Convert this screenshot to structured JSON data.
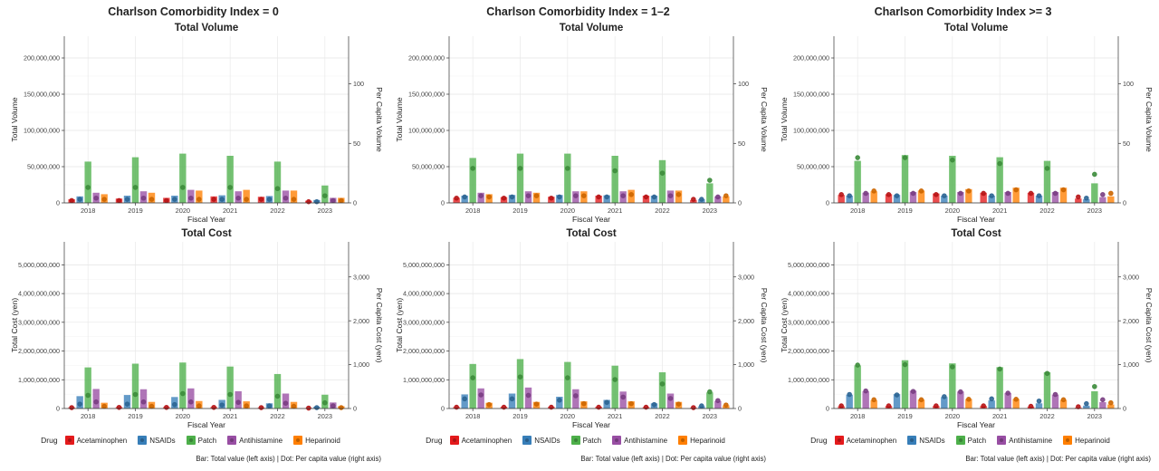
{
  "legend": {
    "title": "Drug",
    "items": [
      {
        "label": "Acetaminophen",
        "color": "#e41a1c"
      },
      {
        "label": "NSAIDs",
        "color": "#377eb8"
      },
      {
        "label": "Patch",
        "color": "#4daf4a"
      },
      {
        "label": "Antihistamine",
        "color": "#984ea3"
      },
      {
        "label": "Heparinoid",
        "color": "#ff7f00"
      }
    ]
  },
  "caption": "Bar: Total value (left axis) | Dot: Per capita value (right axis)",
  "chart_data": [
    {
      "type": "bar",
      "group_title": "Charlson Comorbidity Index = 0",
      "panels": [
        {
          "title": "Total Volume",
          "xlabel": "Fiscal Year",
          "ylabel": "Total Volume",
          "y2label": "Per Capita Volume",
          "categories": [
            "2018",
            "2019",
            "2020",
            "2021",
            "2022",
            "2023"
          ],
          "ylim": [
            0,
            230000000
          ],
          "yticks": [
            0,
            50000000,
            100000000,
            150000000,
            200000000
          ],
          "ytick_labels": [
            "0",
            "50,000,000",
            "100,000,000",
            "150,000,000",
            "200,000,000"
          ],
          "y2lim": [
            0,
            140
          ],
          "y2ticks": [
            0,
            50,
            100
          ],
          "y2tick_labels": [
            "0",
            "50",
            "100"
          ],
          "series": [
            {
              "name": "Acetaminophen",
              "values": [
                5000000,
                6000000,
                7000000,
                9000000,
                8500000,
                3000000
              ],
              "per_capita": [
                2,
                2,
                2,
                3,
                3,
                1
              ]
            },
            {
              "name": "NSAIDs",
              "values": [
                9000000,
                10000000,
                10000000,
                10500000,
                9500000,
                4000000
              ],
              "per_capita": [
                3,
                3,
                3,
                3,
                3,
                1
              ]
            },
            {
              "name": "Patch",
              "values": [
                57000000,
                63000000,
                68000000,
                65000000,
                57000000,
                24000000
              ],
              "per_capita": [
                13,
                13,
                13,
                13,
                12,
                6
              ]
            },
            {
              "name": "Antihistamine",
              "values": [
                14000000,
                16000000,
                18000000,
                16000000,
                17000000,
                7000000
              ],
              "per_capita": [
                4,
                4,
                4,
                4,
                4,
                2
              ]
            },
            {
              "name": "Heparinoid",
              "values": [
                12000000,
                14000000,
                17000000,
                18000000,
                17000000,
                7000000
              ],
              "per_capita": [
                3,
                3,
                3,
                3,
                3,
                2
              ]
            }
          ]
        },
        {
          "title": "Total Cost",
          "xlabel": "Fiscal Year",
          "ylabel": "Total Cost (yen)",
          "y2label": "Per Capita Cost (yen)",
          "categories": [
            "2018",
            "2019",
            "2020",
            "2021",
            "2022",
            "2023"
          ],
          "ylim": [
            0,
            5800000000
          ],
          "yticks": [
            0,
            1000000000,
            2000000000,
            3000000000,
            4000000000,
            5000000000
          ],
          "ytick_labels": [
            "0",
            "1,000,000,000",
            "2,000,000,000",
            "3,000,000,000",
            "4,000,000,000",
            "5,000,000,000"
          ],
          "y2lim": [
            0,
            3800
          ],
          "y2ticks": [
            0,
            1000,
            2000,
            3000
          ],
          "y2tick_labels": [
            "0",
            "1,000",
            "2,000",
            "3,000"
          ],
          "series": [
            {
              "name": "Acetaminophen",
              "values": [
                40000000,
                50000000,
                50000000,
                50000000,
                40000000,
                20000000
              ],
              "per_capita": [
                20,
                25,
                25,
                25,
                20,
                10
              ]
            },
            {
              "name": "NSAIDs",
              "values": [
                430000000,
                470000000,
                400000000,
                300000000,
                180000000,
                60000000
              ],
              "per_capita": [
                100,
                100,
                90,
                80,
                60,
                20
              ]
            },
            {
              "name": "Patch",
              "values": [
                1430000000,
                1560000000,
                1600000000,
                1460000000,
                1200000000,
                480000000
              ],
              "per_capita": [
                300,
                320,
                340,
                320,
                280,
                130
              ]
            },
            {
              "name": "Antihistamine",
              "values": [
                680000000,
                670000000,
                700000000,
                600000000,
                520000000,
                210000000
              ],
              "per_capita": [
                150,
                150,
                150,
                140,
                120,
                60
              ]
            },
            {
              "name": "Heparinoid",
              "values": [
                200000000,
                230000000,
                260000000,
                250000000,
                230000000,
                80000000
              ],
              "per_capita": [
                50,
                50,
                60,
                60,
                50,
                20
              ]
            }
          ]
        }
      ]
    },
    {
      "type": "bar",
      "group_title": "Charlson Comorbidity Index = 1–2",
      "panels": [
        {
          "title": "Total Volume",
          "xlabel": "Fiscal Year",
          "ylabel": "Total Volume",
          "y2label": "Per Capita Volume",
          "categories": [
            "2018",
            "2019",
            "2020",
            "2021",
            "2022",
            "2023"
          ],
          "ylim": [
            0,
            230000000
          ],
          "yticks": [
            0,
            50000000,
            100000000,
            150000000,
            200000000
          ],
          "ytick_labels": [
            "0",
            "50,000,000",
            "100,000,000",
            "150,000,000",
            "200,000,000"
          ],
          "y2lim": [
            0,
            140
          ],
          "y2ticks": [
            0,
            50,
            100
          ],
          "y2tick_labels": [
            "0",
            "50",
            "100"
          ],
          "series": [
            {
              "name": "Acetaminophen",
              "values": [
                7000000,
                8000000,
                8500000,
                10000000,
                10000000,
                4000000
              ],
              "per_capita": [
                4,
                4,
                4,
                5,
                5,
                3
              ]
            },
            {
              "name": "NSAIDs",
              "values": [
                10000000,
                11000000,
                11000000,
                10500000,
                10000000,
                5000000
              ],
              "per_capita": [
                5,
                5,
                5,
                5,
                5,
                3
              ]
            },
            {
              "name": "Patch",
              "values": [
                62000000,
                68000000,
                68000000,
                65000000,
                59000000,
                27000000
              ],
              "per_capita": [
                29,
                29,
                29,
                27,
                25,
                19
              ]
            },
            {
              "name": "Antihistamine",
              "values": [
                14000000,
                16000000,
                16000000,
                16000000,
                17000000,
                9000000
              ],
              "per_capita": [
                6,
                6,
                6,
                6,
                6,
                5
              ]
            },
            {
              "name": "Heparinoid",
              "values": [
                12000000,
                14000000,
                16000000,
                18000000,
                17000000,
                9000000
              ],
              "per_capita": [
                5,
                6,
                6,
                7,
                7,
                6
              ]
            }
          ]
        },
        {
          "title": "Total Cost",
          "xlabel": "Fiscal Year",
          "ylabel": "Total Cost (yen)",
          "y2label": "Per Capita Cost (yen)",
          "categories": [
            "2018",
            "2019",
            "2020",
            "2021",
            "2022",
            "2023"
          ],
          "ylim": [
            0,
            5800000000
          ],
          "yticks": [
            0,
            1000000000,
            2000000000,
            3000000000,
            4000000000,
            5000000000
          ],
          "ytick_labels": [
            "0",
            "1,000,000,000",
            "2,000,000,000",
            "3,000,000,000",
            "4,000,000,000",
            "5,000,000,000"
          ],
          "y2lim": [
            0,
            3800
          ],
          "y2ticks": [
            0,
            1000,
            2000,
            3000
          ],
          "y2tick_labels": [
            "0",
            "1,000",
            "2,000",
            "3,000"
          ],
          "series": [
            {
              "name": "Acetaminophen",
              "values": [
                50000000,
                60000000,
                60000000,
                60000000,
                50000000,
                30000000
              ],
              "per_capita": [
                30,
                30,
                30,
                30,
                30,
                20
              ]
            },
            {
              "name": "NSAIDs",
              "values": [
                490000000,
                520000000,
                410000000,
                300000000,
                180000000,
                80000000
              ],
              "per_capita": [
                220,
                220,
                190,
                140,
                90,
                60
              ]
            },
            {
              "name": "Patch",
              "values": [
                1550000000,
                1720000000,
                1620000000,
                1490000000,
                1260000000,
                560000000
              ],
              "per_capita": [
                700,
                720,
                700,
                660,
                560,
                380
              ]
            },
            {
              "name": "Antihistamine",
              "values": [
                700000000,
                730000000,
                670000000,
                590000000,
                520000000,
                260000000
              ],
              "per_capita": [
                310,
                300,
                290,
                260,
                230,
                180
              ]
            },
            {
              "name": "Heparinoid",
              "values": [
                200000000,
                230000000,
                250000000,
                250000000,
                230000000,
                110000000
              ],
              "per_capita": [
                90,
                100,
                110,
                110,
                100,
                80
              ]
            }
          ]
        }
      ]
    },
    {
      "type": "bar",
      "group_title": "Charlson Comorbidity Index >= 3",
      "panels": [
        {
          "title": "Total Volume",
          "xlabel": "Fiscal Year",
          "ylabel": "Total Volume",
          "y2label": "Per Capita Volume",
          "categories": [
            "2018",
            "2019",
            "2020",
            "2021",
            "2022",
            "2023"
          ],
          "ylim": [
            0,
            230000000
          ],
          "yticks": [
            0,
            50000000,
            100000000,
            150000000,
            200000000
          ],
          "ytick_labels": [
            "0",
            "50,000,000",
            "100,000,000",
            "150,000,000",
            "200,000,000"
          ],
          "y2lim": [
            0,
            140
          ],
          "y2ticks": [
            0,
            50,
            100
          ],
          "y2tick_labels": [
            "0",
            "50",
            "100"
          ],
          "series": [
            {
              "name": "Acetaminophen",
              "values": [
                11000000,
                12000000,
                13000000,
                14000000,
                14000000,
                6000000
              ],
              "per_capita": [
                7,
                7,
                7,
                8,
                8,
                5
              ]
            },
            {
              "name": "NSAIDs",
              "values": [
                10000000,
                11000000,
                10000000,
                10000000,
                10000000,
                5000000
              ],
              "per_capita": [
                6,
                6,
                6,
                6,
                6,
                4
              ]
            },
            {
              "name": "Patch",
              "values": [
                58000000,
                66000000,
                65000000,
                63000000,
                58000000,
                27000000
              ],
              "per_capita": [
                38,
                38,
                36,
                33,
                29,
                24
              ]
            },
            {
              "name": "Antihistamine",
              "values": [
                14000000,
                15000000,
                15000000,
                15000000,
                15000000,
                8000000
              ],
              "per_capita": [
                8,
                8,
                8,
                8,
                8,
                7
              ]
            },
            {
              "name": "Heparinoid",
              "values": [
                16000000,
                17000000,
                19000000,
                21000000,
                21000000,
                9000000
              ],
              "per_capita": [
                10,
                10,
                10,
                11,
                11,
                8
              ]
            }
          ]
        },
        {
          "title": "Total Cost",
          "xlabel": "Fiscal Year",
          "ylabel": "Total Cost (yen)",
          "y2label": "Per Capita Cost (yen)",
          "categories": [
            "2018",
            "2019",
            "2020",
            "2021",
            "2022",
            "2023"
          ],
          "ylim": [
            0,
            5800000000
          ],
          "yticks": [
            0,
            1000000000,
            2000000000,
            3000000000,
            4000000000,
            5000000000
          ],
          "ytick_labels": [
            "0",
            "1,000,000,000",
            "2,000,000,000",
            "3,000,000,000",
            "4,000,000,000",
            "5,000,000,000"
          ],
          "y2lim": [
            0,
            3800
          ],
          "y2ticks": [
            0,
            1000,
            2000,
            3000
          ],
          "y2tick_labels": [
            "0",
            "1,000",
            "2,000",
            "3,000"
          ],
          "series": [
            {
              "name": "Acetaminophen",
              "values": [
                80000000,
                90000000,
                90000000,
                90000000,
                70000000,
                30000000
              ],
              "per_capita": [
                60,
                60,
                60,
                60,
                50,
                40
              ]
            },
            {
              "name": "NSAIDs",
              "values": [
                480000000,
                500000000,
                400000000,
                280000000,
                180000000,
                100000000
              ],
              "per_capita": [
                320,
                310,
                270,
                220,
                170,
                110
              ]
            },
            {
              "name": "Patch",
              "values": [
                1500000000,
                1680000000,
                1570000000,
                1440000000,
                1260000000,
                600000000
              ],
              "per_capita": [
                990,
                1000,
                950,
                900,
                800,
                500
              ]
            },
            {
              "name": "Antihistamine",
              "values": [
                600000000,
                620000000,
                590000000,
                540000000,
                480000000,
                220000000
              ],
              "per_capita": [
                400,
                390,
                380,
                350,
                320,
                200
              ]
            },
            {
              "name": "Heparinoid",
              "values": [
                290000000,
                310000000,
                330000000,
                330000000,
                300000000,
                140000000
              ],
              "per_capita": [
                200,
                200,
                210,
                210,
                200,
                130
              ]
            }
          ]
        }
      ]
    }
  ]
}
